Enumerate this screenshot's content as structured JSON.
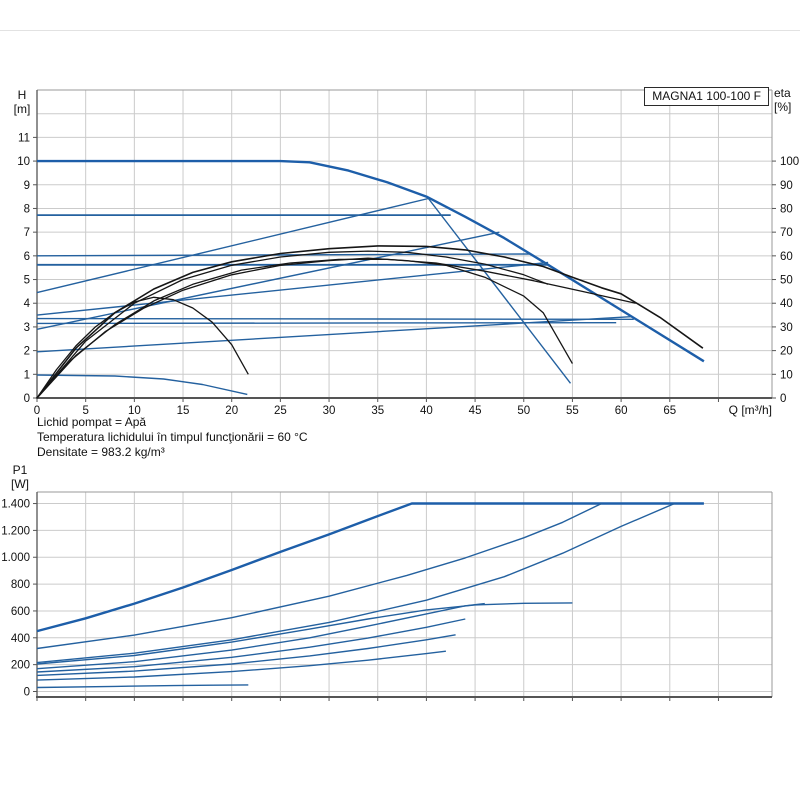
{
  "header": {
    "model": "MAGNA1 100-100 F"
  },
  "notes": [
    "Lichid pompat = Apă",
    "Temperatura lichidului în timpul funcţionării = 60 °C",
    "Densitate = 983.2 kg/m³"
  ],
  "colors": {
    "curve_blue": "#24619f",
    "curve_blue_bold": "#1d5ea9",
    "curve_black": "#161616",
    "grid": "#cbcbcb",
    "frame": "#9a9a9a",
    "axis": "#555555",
    "text": "#111111"
  },
  "chart_data": [
    {
      "type": "line",
      "title": "MAGNA1 100-100 F",
      "x_axis": {
        "label": "Q [m³/h]",
        "min": 0,
        "max": 75.5,
        "grid_step": 5,
        "ticks": [
          [
            0,
            "0"
          ],
          [
            5,
            "5"
          ],
          [
            10,
            "10"
          ],
          [
            15,
            "15"
          ],
          [
            20,
            "20"
          ],
          [
            25,
            "25"
          ],
          [
            30,
            "30"
          ],
          [
            35,
            "35"
          ],
          [
            40,
            "40"
          ],
          [
            45,
            "45"
          ],
          [
            50,
            "50"
          ],
          [
            55,
            "55"
          ],
          [
            60,
            "60"
          ],
          [
            65,
            "65"
          ]
        ]
      },
      "y_left": {
        "label_lines": [
          "H",
          "[m]"
        ],
        "min": 0,
        "max": 13,
        "grid_step": 1,
        "ticks": [
          [
            0,
            "0"
          ],
          [
            1,
            "1"
          ],
          [
            2,
            "2"
          ],
          [
            3,
            "3"
          ],
          [
            4,
            "4"
          ],
          [
            5,
            "5"
          ],
          [
            6,
            "6"
          ],
          [
            7,
            "7"
          ],
          [
            8,
            "8"
          ],
          [
            9,
            "9"
          ],
          [
            10,
            "10"
          ],
          [
            11,
            "11"
          ]
        ]
      },
      "y_right": {
        "label_lines": [
          "eta",
          "[%]"
        ],
        "min": 0,
        "max": 130,
        "ticks": [
          [
            0,
            "0"
          ],
          [
            10,
            "10"
          ],
          [
            20,
            "20"
          ],
          [
            30,
            "30"
          ],
          [
            40,
            "40"
          ],
          [
            50,
            "50"
          ],
          [
            60,
            "60"
          ],
          [
            70,
            "70"
          ],
          [
            80,
            "80"
          ],
          [
            90,
            "90"
          ],
          [
            100,
            "100"
          ]
        ]
      },
      "series": [
        {
          "name": "max-speed-head-curve",
          "axis": "left",
          "width": 2.4,
          "points": [
            [
              0,
              10
            ],
            [
              25,
              10
            ],
            [
              28,
              9.95
            ],
            [
              32,
              9.6
            ],
            [
              36,
              9.1
            ],
            [
              40,
              8.5
            ],
            [
              44,
              7.65
            ],
            [
              48,
              6.75
            ],
            [
              52,
              5.75
            ],
            [
              68.5,
              1.55
            ]
          ]
        },
        {
          "name": "const-pressure-7.7",
          "axis": "left",
          "width": 1.8,
          "points": [
            [
              0,
              7.72
            ],
            [
              42.5,
              7.72
            ]
          ]
        },
        {
          "name": "const-pressure-6.0",
          "axis": "left",
          "width": 1.4,
          "points": [
            [
              0,
              6.0
            ],
            [
              50.6,
              6.08
            ]
          ]
        },
        {
          "name": "const-pressure-5.6",
          "axis": "left",
          "width": 1.8,
          "points": [
            [
              0,
              5.62
            ],
            [
              52.4,
              5.62
            ]
          ]
        },
        {
          "name": "const-pressure-3.35",
          "axis": "left",
          "width": 1.4,
          "points": [
            [
              0,
              3.35
            ],
            [
              61.3,
              3.32
            ]
          ]
        },
        {
          "name": "const-pressure-3.15",
          "axis": "left",
          "width": 1.4,
          "points": [
            [
              0,
              3.15
            ],
            [
              59.5,
              3.18
            ]
          ]
        },
        {
          "name": "prop-pressure-a",
          "axis": "left",
          "width": 1.4,
          "points": [
            [
              0,
              4.45
            ],
            [
              40.2,
              8.42
            ]
          ]
        },
        {
          "name": "prop-pressure-b",
          "axis": "left",
          "width": 1.4,
          "points": [
            [
              0,
              2.9
            ],
            [
              47.5,
              7.0
            ]
          ]
        },
        {
          "name": "prop-pressure-c",
          "axis": "left",
          "width": 1.4,
          "points": [
            [
              0,
              3.5
            ],
            [
              52.5,
              5.72
            ]
          ]
        },
        {
          "name": "prop-pressure-d",
          "axis": "left",
          "width": 1.4,
          "points": [
            [
              0,
              1.95
            ],
            [
              61,
              3.43
            ]
          ]
        },
        {
          "name": "steep-duty-line",
          "axis": "left",
          "width": 1.4,
          "points": [
            [
              40.2,
              8.42
            ],
            [
              54.8,
              0.62
            ]
          ]
        },
        {
          "name": "min-speed-head-curve",
          "axis": "left",
          "width": 1.4,
          "points": [
            [
              0,
              0.97
            ],
            [
              8,
              0.93
            ],
            [
              13,
              0.8
            ],
            [
              17,
              0.57
            ],
            [
              21.6,
              0.15
            ]
          ]
        },
        {
          "name": "eta-min-speed",
          "axis": "right",
          "width": 1.3,
          "black": true,
          "points": [
            [
              0,
              0
            ],
            [
              2,
              12
            ],
            [
              4,
              22
            ],
            [
              6,
              30
            ],
            [
              8,
              36
            ],
            [
              10,
              40.5
            ],
            [
              12,
              42.5
            ],
            [
              14,
              41.5
            ],
            [
              16,
              38
            ],
            [
              18,
              32
            ],
            [
              20,
              22.5
            ],
            [
              21.7,
              10
            ]
          ]
        },
        {
          "name": "eta-max-speed",
          "axis": "right",
          "width": 1.6,
          "black": true,
          "points": [
            [
              0,
              0
            ],
            [
              4,
              21
            ],
            [
              8,
              36
            ],
            [
              12,
              46
            ],
            [
              16,
              53
            ],
            [
              20,
              57.5
            ],
            [
              25,
              61
            ],
            [
              30,
              63
            ],
            [
              35,
              64.2
            ],
            [
              40,
              64
            ],
            [
              44,
              62.5
            ],
            [
              48,
              59.5
            ],
            [
              52,
              55.5
            ],
            [
              55,
              51
            ],
            [
              58,
              46.5
            ],
            [
              60,
              44
            ],
            [
              64,
              34
            ],
            [
              68.4,
              21
            ]
          ]
        },
        {
          "name": "eta-curve-3",
          "axis": "right",
          "width": 1.3,
          "black": true,
          "points": [
            [
              0,
              0
            ],
            [
              5,
              24
            ],
            [
              10,
              40
            ],
            [
              15,
              50
            ],
            [
              20,
              56
            ],
            [
              25,
              59.5
            ],
            [
              30,
              61.5
            ],
            [
              34,
              62
            ],
            [
              38,
              61.5
            ],
            [
              42,
              59.5
            ],
            [
              46,
              56.5
            ],
            [
              50,
              52
            ],
            [
              52.5,
              48
            ]
          ]
        },
        {
          "name": "eta-curve-4",
          "axis": "right",
          "width": 1.3,
          "black": true,
          "points": [
            [
              0,
              0
            ],
            [
              4,
              18
            ],
            [
              8,
              31
            ],
            [
              12,
              41
            ],
            [
              16,
              48
            ],
            [
              21,
              54
            ],
            [
              26,
              57
            ],
            [
              31,
              58.5
            ],
            [
              36,
              58.5
            ],
            [
              41,
              57
            ],
            [
              46,
              53.5
            ],
            [
              51,
              49.5
            ],
            [
              56,
              45
            ],
            [
              61.5,
              40
            ]
          ]
        },
        {
          "name": "eta-curve-5",
          "axis": "right",
          "width": 1.3,
          "black": true,
          "points": [
            [
              0,
              0
            ],
            [
              3.5,
              16
            ],
            [
              7,
              28
            ],
            [
              11,
              38
            ],
            [
              15,
              45.5
            ],
            [
              20,
              52
            ],
            [
              25,
              56
            ],
            [
              30,
              58
            ],
            [
              34,
              59
            ],
            [
              38,
              58
            ],
            [
              42,
              56
            ],
            [
              46,
              51
            ],
            [
              50,
              43
            ],
            [
              52,
              36
            ],
            [
              55,
              14.5
            ]
          ]
        }
      ]
    },
    {
      "type": "line",
      "title": "P1 power curves",
      "x_axis": {
        "label": "",
        "min": 0,
        "max": 75.5,
        "grid_step": 5,
        "ticks": []
      },
      "y_left": {
        "label_lines": [
          "P1",
          "[W]"
        ],
        "min": -41,
        "max": 1486,
        "ticks": [
          [
            0,
            "0"
          ],
          [
            200,
            "200"
          ],
          [
            400,
            "400"
          ],
          [
            600,
            "600"
          ],
          [
            800,
            "800"
          ],
          [
            1000,
            "1.000"
          ],
          [
            1200,
            "1.200"
          ],
          [
            1400,
            "1.400"
          ]
        ]
      },
      "series": [
        {
          "name": "p1-max-speed",
          "axis": "left",
          "width": 2.4,
          "points": [
            [
              0,
              450
            ],
            [
              5,
              545
            ],
            [
              10,
              655
            ],
            [
              15,
              775
            ],
            [
              20,
              905
            ],
            [
              25,
              1040
            ],
            [
              30,
              1170
            ],
            [
              34,
              1280
            ],
            [
              38.5,
              1400
            ],
            [
              68.5,
              1400
            ]
          ]
        },
        {
          "name": "p1-curve-a",
          "axis": "left",
          "width": 1.4,
          "points": [
            [
              0,
              320
            ],
            [
              10,
              420
            ],
            [
              20,
              550
            ],
            [
              30,
              710
            ],
            [
              38,
              865
            ],
            [
              44,
              995
            ],
            [
              50,
              1145
            ],
            [
              54,
              1260
            ],
            [
              58,
              1400
            ]
          ]
        },
        {
          "name": "p1-curve-b",
          "axis": "left",
          "width": 1.4,
          "points": [
            [
              0,
              215
            ],
            [
              10,
              285
            ],
            [
              20,
              385
            ],
            [
              30,
              515
            ],
            [
              40,
              680
            ],
            [
              48,
              855
            ],
            [
              54,
              1030
            ],
            [
              60,
              1230
            ],
            [
              65.5,
              1400
            ]
          ]
        },
        {
          "name": "p1-curve-c",
          "axis": "left",
          "width": 1.4,
          "points": [
            [
              0,
              205
            ],
            [
              10,
              268
            ],
            [
              20,
              368
            ],
            [
              28,
              465
            ],
            [
              34,
              540
            ],
            [
              40,
              608
            ],
            [
              45,
              645
            ],
            [
              50,
              657
            ],
            [
              55,
              660
            ]
          ]
        },
        {
          "name": "p1-curve-d",
          "axis": "left",
          "width": 1.4,
          "points": [
            [
              0,
              170
            ],
            [
              10,
              222
            ],
            [
              20,
              308
            ],
            [
              28,
              400
            ],
            [
              34,
              487
            ],
            [
              40,
              578
            ],
            [
              44,
              638
            ],
            [
              46,
              655
            ]
          ]
        },
        {
          "name": "p1-curve-e",
          "axis": "left",
          "width": 1.4,
          "points": [
            [
              0,
              145
            ],
            [
              10,
              185
            ],
            [
              20,
              255
            ],
            [
              28,
              330
            ],
            [
              34,
              398
            ],
            [
              40,
              478
            ],
            [
              44,
              540
            ]
          ]
        },
        {
          "name": "p1-curve-f",
          "axis": "left",
          "width": 1.4,
          "points": [
            [
              0,
              120
            ],
            [
              10,
              152
            ],
            [
              20,
              205
            ],
            [
              28,
              265
            ],
            [
              34,
              320
            ],
            [
              40,
              385
            ],
            [
              43,
              422
            ]
          ]
        },
        {
          "name": "p1-curve-g",
          "axis": "left",
          "width": 1.4,
          "points": [
            [
              0,
              85
            ],
            [
              10,
              108
            ],
            [
              20,
              148
            ],
            [
              28,
              192
            ],
            [
              34,
              233
            ],
            [
              40,
              282
            ],
            [
              42,
              300
            ]
          ]
        },
        {
          "name": "p1-min-speed",
          "axis": "left",
          "width": 1.4,
          "points": [
            [
              0,
              30
            ],
            [
              8,
              38
            ],
            [
              14,
              44
            ],
            [
              18,
              47
            ],
            [
              21.7,
              49
            ]
          ]
        }
      ]
    }
  ]
}
